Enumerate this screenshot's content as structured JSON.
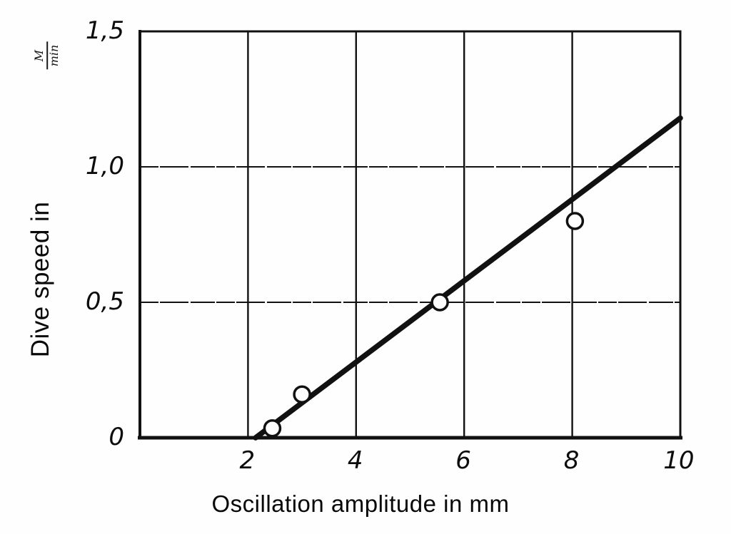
{
  "chart_data": {
    "type": "scatter",
    "title": "",
    "xlabel": "Oscillation amplitude in mm",
    "ylabel": "Dive speed in",
    "y_unit": "M/min",
    "y_unit_numerator": "M",
    "y_unit_denominator": "min",
    "xlim": [
      0,
      10
    ],
    "ylim": [
      0,
      1.5
    ],
    "x_ticks": [
      {
        "v": 2,
        "label": "2"
      },
      {
        "v": 4,
        "label": "4"
      },
      {
        "v": 6,
        "label": "6"
      },
      {
        "v": 8,
        "label": "8"
      },
      {
        "v": 10,
        "label": "10"
      }
    ],
    "y_ticks": [
      {
        "v": 0,
        "label": "0"
      },
      {
        "v": 0.5,
        "label": "0,5"
      },
      {
        "v": 1.0,
        "label": "1,0"
      },
      {
        "v": 1.5,
        "label": "1,5"
      }
    ],
    "grid": {
      "x_at": [
        2,
        4,
        6,
        8
      ],
      "y_at": [
        0.5,
        1.0
      ],
      "visible": true
    },
    "legend": null,
    "points": [
      {
        "x": 2.45,
        "y": 0.035
      },
      {
        "x": 3.0,
        "y": 0.16
      },
      {
        "x": 5.55,
        "y": 0.5
      },
      {
        "x": 8.05,
        "y": 0.8
      }
    ],
    "fit_line": {
      "x1": 2.14,
      "y1": 0,
      "x2": 10.0,
      "y2": 1.18
    }
  },
  "colors": {
    "ink": "#111111",
    "paper": "#fefefe"
  }
}
